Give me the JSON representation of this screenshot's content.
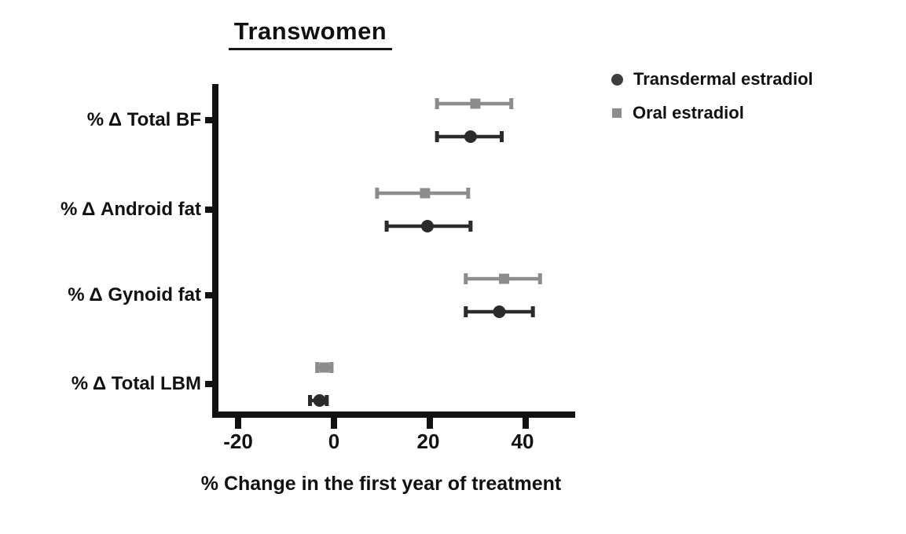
{
  "title": "Transwomen",
  "legend": {
    "items": [
      {
        "label": "Transdermal estradiol",
        "marker": "circle",
        "color": "#3d3d3d"
      },
      {
        "label": "Oral estradiol",
        "marker": "square",
        "color": "#8c8c8c"
      }
    ]
  },
  "chart_data": {
    "type": "scatter",
    "subtype": "horizontal-dot-plot-with-error-bars",
    "title": "Transwomen",
    "xlabel": "% Change in the first year of treatment",
    "ylabel": "",
    "categories": [
      "% Δ Total BF",
      "% Δ Android fat",
      "% Δ Gynoid fat",
      "% Δ Total LBM"
    ],
    "x_ticks": [
      -20,
      0,
      20,
      40
    ],
    "xlim": [
      -26,
      50
    ],
    "grid": false,
    "legend_position": "outside-top-right",
    "axis_color": "#111111",
    "series": [
      {
        "name": "Oral estradiol",
        "marker": "square",
        "color": "#8c8c8c",
        "points": [
          {
            "category": "% Δ Total BF",
            "mean": 29.5,
            "low": 21.5,
            "high": 37.0
          },
          {
            "category": "% Δ Android fat",
            "mean": 19.0,
            "low": 9.0,
            "high": 28.0
          },
          {
            "category": "% Δ Gynoid fat",
            "mean": 35.5,
            "low": 27.5,
            "high": 43.0
          },
          {
            "category": "% Δ Total LBM",
            "mean": -2.0,
            "low": -3.5,
            "high": -0.5
          }
        ]
      },
      {
        "name": "Transdermal estradiol",
        "marker": "circle",
        "color": "#2b2b2b",
        "points": [
          {
            "category": "% Δ Total BF",
            "mean": 28.5,
            "low": 21.5,
            "high": 35.0
          },
          {
            "category": "% Δ Android fat",
            "mean": 19.5,
            "low": 11.0,
            "high": 28.5
          },
          {
            "category": "% Δ Gynoid fat",
            "mean": 34.5,
            "low": 27.5,
            "high": 41.5
          },
          {
            "category": "% Δ Total LBM",
            "mean": -3.0,
            "low": -5.0,
            "high": -1.5
          }
        ]
      }
    ]
  }
}
